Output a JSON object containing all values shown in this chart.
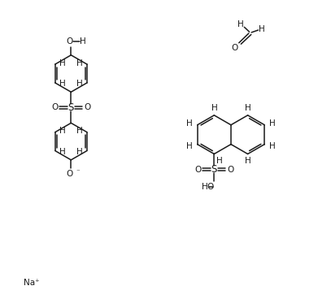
{
  "bg_color": "#ffffff",
  "line_color": "#1a1a1a",
  "text_color": "#1a1a1a",
  "font_size": 7.5,
  "line_width": 1.1,
  "fig_width": 3.91,
  "fig_height": 3.68,
  "dpi": 100,
  "xlim": [
    0,
    10
  ],
  "ylim": [
    0,
    10
  ]
}
